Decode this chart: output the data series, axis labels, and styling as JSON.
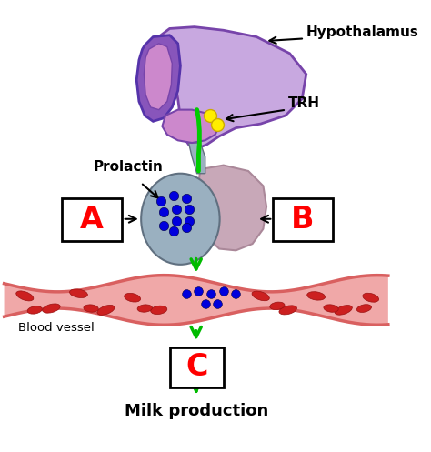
{
  "bg_color": "#ffffff",
  "hypothalamus_label": "Hypothalamus",
  "trh_label": "TRH",
  "prolactin_label": "Prolactin",
  "blood_vessel_label": "Blood vessel",
  "milk_label": "Milk production",
  "box_A_label": "A",
  "box_B_label": "B",
  "box_C_label": "C",
  "label_color": "#ff0000",
  "arrow_color": "#00bb00",
  "trh_dot_color": "#ffee00",
  "prolactin_dot_color": "#0000dd",
  "blood_vessel_outer": "#d96060",
  "blood_vessel_inner": "#f0a8a8",
  "rbc_color": "#cc2020",
  "hypo_purple_dark": "#8855bb",
  "hypo_purple_light": "#c8a8e0",
  "hypo_pink_inner": "#cc88cc",
  "pituitary_grey": "#9ab0c0",
  "pituitary_grey_light": "#b8c8d0",
  "pituitary_pink": "#c8a8b8",
  "stalk_color": "#9ab0c0",
  "green_line": "#00cc00"
}
